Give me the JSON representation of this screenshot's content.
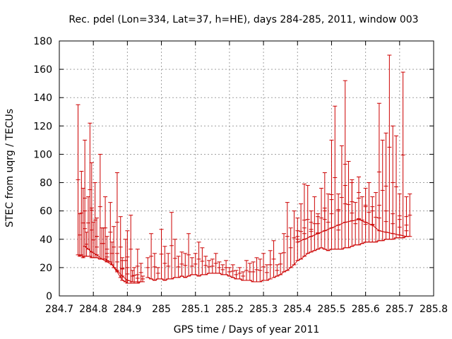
{
  "chart_data": {
    "type": "scatter",
    "title": "Rec. pdel (Lon=334, Lat=37, h=HE), days 284-285, 2011, window 003",
    "xlabel": "GPS time / Days of year 2011",
    "ylabel": "STEC from uqrg / TECUs",
    "xlim": [
      284.7,
      285.8
    ],
    "ylim": [
      0,
      180
    ],
    "x_ticks": [
      "284.7",
      "284.8",
      "284.9",
      "285",
      "285.1",
      "285.2",
      "285.3",
      "285.4",
      "285.5",
      "285.6",
      "285.7",
      "285.8"
    ],
    "x_tick_values": [
      284.7,
      284.8,
      284.9,
      285.0,
      285.1,
      285.2,
      285.3,
      285.4,
      285.5,
      285.6,
      285.7,
      285.8
    ],
    "y_ticks": [
      "0",
      "20",
      "40",
      "60",
      "80",
      "100",
      "120",
      "140",
      "160",
      "180"
    ],
    "y_tick_values": [
      0,
      20,
      40,
      60,
      80,
      100,
      120,
      140,
      160,
      180
    ],
    "grid": true,
    "color": "#cc0000",
    "series": [
      {
        "x": [
          284.755,
          284.76,
          284.765,
          284.77,
          284.775,
          284.78,
          284.79,
          284.795,
          284.8,
          284.805,
          284.81,
          284.82,
          284.83,
          284.835,
          284.84,
          284.85,
          284.86,
          284.87,
          284.88,
          284.885,
          284.895,
          284.9,
          284.91,
          284.92,
          284.93,
          284.94
        ],
        "ymin": [
          29,
          28,
          29,
          27,
          28,
          28,
          28,
          27,
          27,
          27,
          27,
          26,
          26,
          26,
          25,
          24,
          20,
          17,
          13,
          11,
          10,
          9,
          9,
          9,
          9,
          10
        ],
        "ymax": [
          135,
          58,
          88,
          76,
          110,
          45,
          122,
          94,
          52,
          80,
          42,
          100,
          48,
          70,
          30,
          66,
          49,
          87,
          56,
          27,
          40,
          46,
          57,
          20,
          33,
          23
        ]
      },
      {
        "x": [
          284.775,
          284.785,
          284.795,
          284.81,
          284.825,
          284.84,
          284.855,
          284.87,
          284.885,
          284.9,
          284.915,
          284.93,
          284.945
        ],
        "ymin": [
          35,
          33,
          31,
          29,
          26,
          24,
          22,
          18,
          14,
          11,
          10,
          10,
          10
        ],
        "ymax": [
          60,
          70,
          62,
          55,
          48,
          42,
          38,
          30,
          25,
          20,
          18,
          15,
          14
        ]
      },
      {
        "x": [
          284.96,
          284.97,
          284.98,
          284.99,
          285.0,
          285.01,
          285.02,
          285.03,
          285.04,
          285.05,
          285.06,
          285.07,
          285.08,
          285.09,
          285.1,
          285.11,
          285.12,
          285.13,
          285.14,
          285.15,
          285.16,
          285.17,
          285.18,
          285.19,
          285.2,
          285.21,
          285.22,
          285.23,
          285.24,
          285.25,
          285.26,
          285.27,
          285.28,
          285.29,
          285.3,
          285.31,
          285.32
        ],
        "ymin": [
          13,
          12,
          11,
          12,
          12,
          11,
          12,
          12,
          13,
          13,
          14,
          13,
          14,
          15,
          15,
          14,
          15,
          15,
          16,
          16,
          16,
          16,
          15,
          15,
          14,
          13,
          12,
          12,
          11,
          11,
          11,
          10,
          10,
          10,
          11,
          11,
          12
        ],
        "ymax": [
          27,
          44,
          30,
          20,
          47,
          35,
          30,
          59,
          40,
          28,
          31,
          30,
          44,
          27,
          30,
          38,
          34,
          28,
          25,
          26,
          30,
          24,
          22,
          25,
          20,
          22,
          18,
          20,
          17,
          25,
          23,
          24,
          27,
          26,
          30,
          22,
          32
        ]
      },
      {
        "x": [
          285.33,
          285.34,
          285.35,
          285.36,
          285.37,
          285.38,
          285.39,
          285.4,
          285.41,
          285.42,
          285.43,
          285.44,
          285.45,
          285.46,
          285.47,
          285.48,
          285.49,
          285.5,
          285.51,
          285.52,
          285.53,
          285.54,
          285.55,
          285.56,
          285.57,
          285.58,
          285.59,
          285.6,
          285.61,
          285.62,
          285.63,
          285.64,
          285.65,
          285.66,
          285.67,
          285.68,
          285.69,
          285.7,
          285.71,
          285.72,
          285.73
        ],
        "ymin": [
          13,
          14,
          15,
          17,
          18,
          20,
          22,
          25,
          26,
          28,
          30,
          31,
          32,
          33,
          34,
          33,
          32,
          33,
          33,
          33,
          33,
          34,
          34,
          35,
          36,
          36,
          37,
          38,
          38,
          38,
          38,
          39,
          39,
          40,
          40,
          40,
          41,
          41,
          41,
          42,
          42
        ],
        "ymax": [
          39,
          22,
          30,
          44,
          66,
          48,
          60,
          55,
          65,
          79,
          78,
          60,
          70,
          56,
          76,
          87,
          72,
          110,
          134,
          60,
          106,
          152,
          95,
          82,
          66,
          73,
          70,
          63,
          80,
          63,
          73,
          136,
          110,
          115,
          170,
          120,
          113,
          72,
          158,
          70,
          72
        ]
      },
      {
        "x": [
          285.4,
          285.42,
          285.44,
          285.46,
          285.48,
          285.5,
          285.52,
          285.54,
          285.56,
          285.58,
          285.6,
          285.62,
          285.64,
          285.66,
          285.68,
          285.7,
          285.72
        ],
        "ymin": [
          38,
          40,
          42,
          44,
          46,
          48,
          50,
          52,
          53,
          54,
          52,
          50,
          46,
          45,
          44,
          43,
          42
        ],
        "ymax": [
          46,
          48,
          52,
          58,
          62,
          68,
          72,
          78,
          80,
          84,
          76,
          70,
          64,
          60,
          58,
          54,
          50
        ]
      }
    ]
  }
}
